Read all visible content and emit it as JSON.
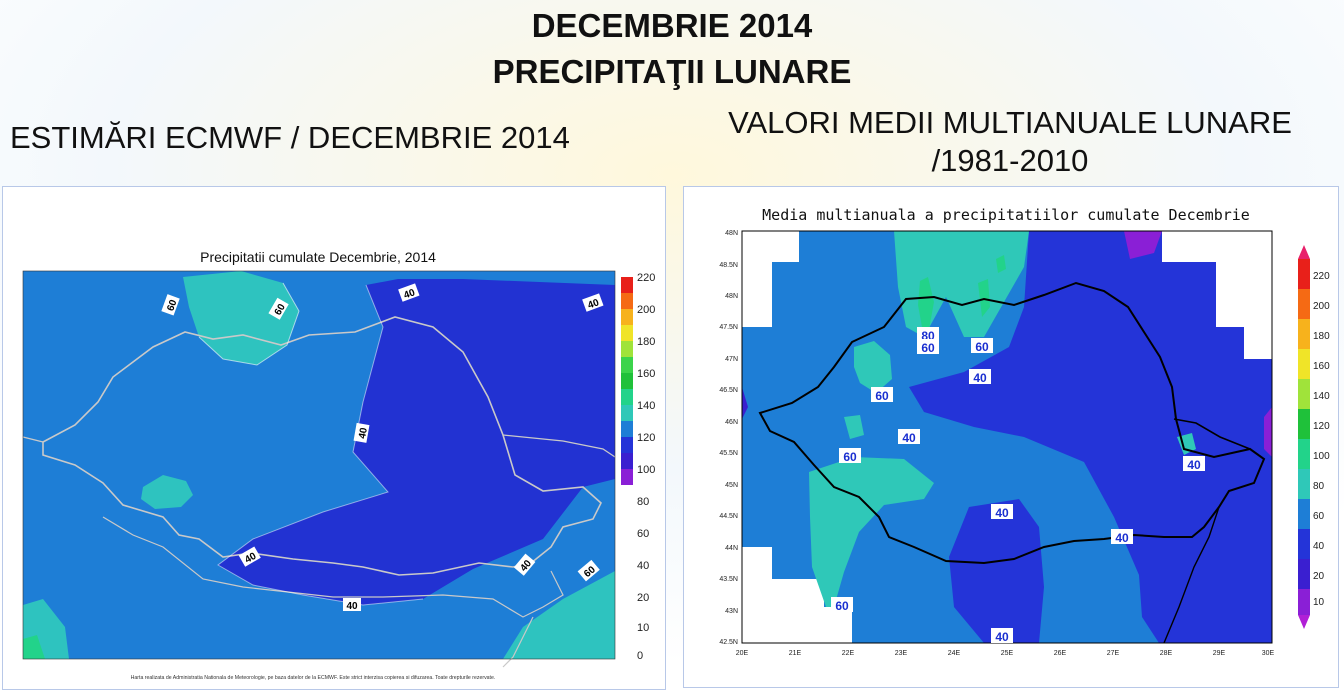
{
  "header": {
    "title_line1": "DECEMBRIE 2014",
    "title_line2": "PRECIPITAŢII LUNARE"
  },
  "left_panel": {
    "subtitle": "ESTIMĂRI ECMWF / DECEMBRIE 2014",
    "map_title": "Precipitatii cumulate Decembrie, 2014",
    "footer_note": "Harta realizata de Administratia Nationala de Meteorologie, pe baza datelor de la ECMWF. Este strict interzisa copierea si difuzarea. Toate drepturile rezervate.",
    "colorbar_labels": [
      "220",
      "200",
      "180",
      "160",
      "140",
      "120",
      "100",
      "80",
      "60",
      "40",
      "20",
      "10",
      "0"
    ],
    "contour_labels": [
      "60",
      "60",
      "40",
      "40",
      "40",
      "40",
      "40",
      "40",
      "60"
    ]
  },
  "right_panel": {
    "subtitle_line1": "VALORI MEDII MULTIANUALE LUNARE",
    "subtitle_line2": "/1981-2010",
    "map_title": "Media multianuala a precipitatiilor cumulate Decembrie",
    "lat_labels": [
      "48N",
      "48.5N",
      "48N",
      "47.5N",
      "47N",
      "46.5N",
      "46N",
      "45.5N",
      "45N",
      "44.5N",
      "44N",
      "43.5N",
      "43N",
      "42.5N"
    ],
    "lon_labels": [
      "20E",
      "21E",
      "22E",
      "23E",
      "24E",
      "25E",
      "26E",
      "27E",
      "28E",
      "29E",
      "30E"
    ],
    "colorbar_labels": [
      "220",
      "200",
      "180",
      "160",
      "140",
      "120",
      "100",
      "80",
      "60",
      "40",
      "20",
      "10"
    ],
    "contour_labels": [
      "80",
      "60",
      "60",
      "60",
      "40",
      "60",
      "40",
      "60",
      "40",
      "40",
      "40",
      "40",
      "60",
      "40"
    ]
  },
  "colors": {
    "c0_10": "#8a1fd6",
    "c10_20": "#3a1fd0",
    "c20_40": "#2434d8",
    "c40_60": "#1e7ed6",
    "c60_80": "#2fc8b8",
    "c80_100": "#22d38a",
    "c100_120": "#1fc13a",
    "c120_140": "#3bd44b",
    "c140_160": "#a0e33a",
    "c160_180": "#f0e428",
    "c180_200": "#f7b21c",
    "c200_220": "#f56a14",
    "c220": "#e8201a"
  }
}
